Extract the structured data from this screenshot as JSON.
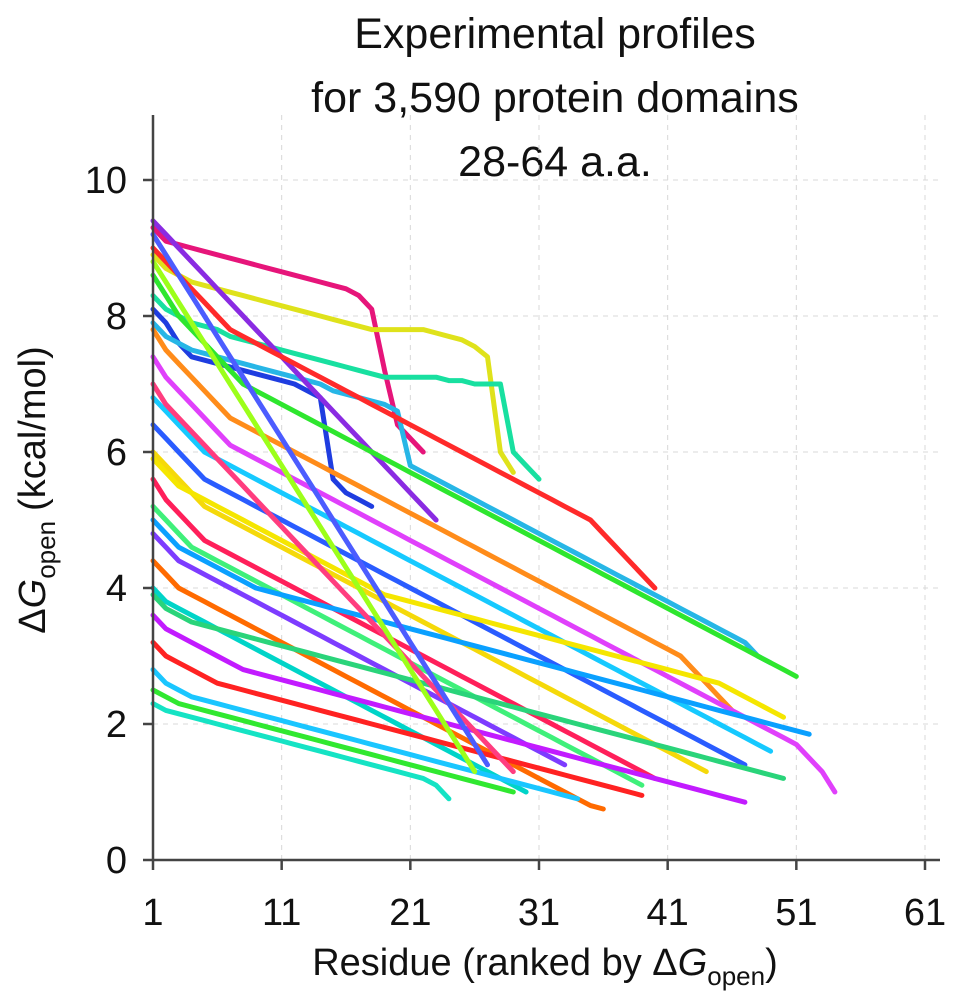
{
  "chart_data": {
    "type": "line",
    "title": [
      "Experimental profiles",
      "for 3,590 protein domains",
      "28-64 a.a."
    ],
    "xlabel": {
      "main": "Residue (ranked by Δ",
      "var": "G",
      "sub": "open",
      "close": ")"
    },
    "ylabel": {
      "main": "Δ",
      "var": "G",
      "sub": "open",
      "units": "(kcal/mol)"
    },
    "xlim": [
      1,
      62
    ],
    "ylim": [
      0,
      11
    ],
    "x_ticks": [
      1,
      11,
      21,
      31,
      41,
      51,
      61
    ],
    "y_ticks": [
      0,
      2,
      4,
      6,
      8,
      10
    ],
    "grid": true,
    "series_note": "3,590 profiles; representative subset drawn, each starting at residue 1 and decreasing",
    "series": [
      {
        "color": "#e6157a",
        "y": [
          9.3,
          9.1,
          9.05,
          9.0,
          8.95,
          8.9,
          8.85,
          8.8,
          8.75,
          8.7,
          8.65,
          8.6,
          8.55,
          8.5,
          8.45,
          8.4,
          8.3,
          8.1,
          7.2,
          6.4,
          6.2,
          6.0
        ]
      },
      {
        "color": "#dfe21b",
        "y": [
          8.9,
          8.7,
          8.6,
          8.5,
          8.45,
          8.4,
          8.35,
          8.3,
          8.25,
          8.2,
          8.15,
          8.1,
          8.05,
          8.0,
          7.95,
          7.9,
          7.85,
          7.8,
          7.8,
          7.8,
          7.8,
          7.8,
          7.75,
          7.7,
          7.65,
          7.55,
          7.4,
          6.0,
          5.7
        ]
      },
      {
        "color": "#18e0a0",
        "y": [
          8.3,
          8.1,
          8.0,
          7.9,
          7.85,
          7.8,
          7.7,
          7.65,
          7.6,
          7.55,
          7.5,
          7.45,
          7.4,
          7.35,
          7.3,
          7.25,
          7.2,
          7.15,
          7.1,
          7.1,
          7.1,
          7.1,
          7.1,
          7.05,
          7.05,
          7.0,
          7.0,
          7.0,
          6.0,
          5.8,
          5.6
        ]
      },
      {
        "color": "#1f3de0",
        "y": [
          8.1,
          7.9,
          7.6,
          7.4,
          7.35,
          7.3,
          7.25,
          7.2,
          7.15,
          7.1,
          7.05,
          7.0,
          6.9,
          6.8,
          5.6,
          5.4,
          5.3,
          5.2
        ]
      },
      {
        "color": "#27b6e6",
        "y": [
          7.9,
          7.7,
          7.6,
          7.5,
          7.45,
          7.4,
          7.35,
          7.3,
          7.25,
          7.2,
          7.15,
          7.1,
          7.05,
          7.0,
          6.9,
          6.85,
          6.8,
          6.75,
          6.7,
          6.6,
          5.8,
          5.7,
          5.6,
          5.5,
          5.4,
          5.3,
          5.2,
          5.1,
          5.0,
          4.9,
          4.8,
          4.7,
          4.6,
          4.5,
          4.4,
          4.3,
          4.2,
          4.1,
          4.0,
          3.9,
          3.8,
          3.7,
          3.6,
          3.5,
          3.4,
          3.3,
          3.2,
          3.0,
          2.9
        ]
      },
      {
        "color": "#8a2be2",
        "y": [
          9.4,
          9.2,
          9.0,
          8.8,
          8.6,
          8.4,
          8.2,
          8.0,
          7.8,
          7.6,
          7.4,
          7.2,
          7.0,
          6.8,
          6.6,
          6.4,
          6.2,
          6.0,
          5.8,
          5.6,
          5.4,
          5.2,
          5.0
        ]
      },
      {
        "color": "#ff2a2a",
        "y": [
          9.0,
          8.8,
          8.6,
          8.4,
          8.2,
          8.0,
          7.8,
          7.7,
          7.6,
          7.5,
          7.4,
          7.3,
          7.2,
          7.1,
          7.0,
          6.9,
          6.8,
          6.7,
          6.6,
          6.5,
          6.4,
          6.3,
          6.2,
          6.1,
          6.0,
          5.9,
          5.8,
          5.7,
          5.6,
          5.5,
          5.4,
          5.3,
          5.2,
          5.1,
          5.0,
          4.8,
          4.6,
          4.4,
          4.2,
          4.0
        ]
      },
      {
        "color": "#2ee62e",
        "y": [
          8.6,
          8.3,
          8.0,
          7.8,
          7.6,
          7.4,
          7.2,
          7.0,
          6.9,
          6.8,
          6.7,
          6.6,
          6.5,
          6.4,
          6.3,
          6.2,
          6.1,
          6.0,
          5.9,
          5.8,
          5.7,
          5.6,
          5.5,
          5.4,
          5.3,
          5.2,
          5.1,
          5.0,
          4.9,
          4.8,
          4.7,
          4.6,
          4.5,
          4.4,
          4.3,
          4.2,
          4.1,
          4.0,
          3.9,
          3.8,
          3.7,
          3.6,
          3.5,
          3.4,
          3.3,
          3.2,
          3.1,
          3.0,
          2.9,
          2.8,
          2.7
        ]
      },
      {
        "color": "#ff8c1a",
        "y": [
          7.8,
          7.5,
          7.3,
          7.1,
          6.9,
          6.7,
          6.5,
          6.4,
          6.3,
          6.2,
          6.1,
          6.0,
          5.9,
          5.8,
          5.7,
          5.6,
          5.5,
          5.4,
          5.3,
          5.2,
          5.1,
          5.0,
          4.9,
          4.8,
          4.7,
          4.6,
          4.5,
          4.4,
          4.3,
          4.2,
          4.1,
          4.0,
          3.9,
          3.8,
          3.7,
          3.6,
          3.5,
          3.4,
          3.3,
          3.2,
          3.1,
          3.0,
          2.8,
          2.6,
          2.4,
          2.2
        ]
      },
      {
        "color": "#e040fb",
        "y": [
          7.4,
          7.1,
          6.9,
          6.7,
          6.5,
          6.3,
          6.1,
          6.0,
          5.9,
          5.8,
          5.7,
          5.6,
          5.5,
          5.4,
          5.3,
          5.2,
          5.1,
          5.0,
          4.9,
          4.8,
          4.7,
          4.6,
          4.5,
          4.4,
          4.3,
          4.2,
          4.1,
          4.0,
          3.9,
          3.8,
          3.7,
          3.6,
          3.5,
          3.4,
          3.3,
          3.2,
          3.1,
          3.0,
          2.9,
          2.8,
          2.7,
          2.6,
          2.5,
          2.4,
          2.3,
          2.2,
          2.1,
          2.0,
          1.9,
          1.8,
          1.7,
          1.5,
          1.3,
          1.0
        ]
      },
      {
        "color": "#16c9ff",
        "y": [
          6.8,
          6.6,
          6.4,
          6.2,
          6.0,
          5.9,
          5.8,
          5.7,
          5.6,
          5.5,
          5.4,
          5.3,
          5.2,
          5.1,
          5.0,
          4.9,
          4.8,
          4.7,
          4.6,
          4.5,
          4.4,
          4.3,
          4.2,
          4.1,
          4.0,
          3.9,
          3.8,
          3.7,
          3.6,
          3.5,
          3.4,
          3.3,
          3.2,
          3.1,
          3.0,
          2.9,
          2.8,
          2.7,
          2.6,
          2.5,
          2.4,
          2.3,
          2.2,
          2.1,
          2.0,
          1.9,
          1.8,
          1.7,
          1.6
        ]
      },
      {
        "color": "#2a5cff",
        "y": [
          6.4,
          6.2,
          6.0,
          5.8,
          5.6,
          5.5,
          5.4,
          5.3,
          5.2,
          5.1,
          5.0,
          4.9,
          4.8,
          4.7,
          4.6,
          4.5,
          4.4,
          4.3,
          4.2,
          4.1,
          4.0,
          3.9,
          3.8,
          3.7,
          3.6,
          3.5,
          3.4,
          3.3,
          3.2,
          3.1,
          3.0,
          2.9,
          2.8,
          2.7,
          2.6,
          2.5,
          2.4,
          2.3,
          2.2,
          2.1,
          2.0,
          1.9,
          1.8,
          1.7,
          1.6,
          1.5,
          1.4
        ]
      },
      {
        "color": "#f5d90a",
        "y": [
          6.0,
          5.8,
          5.6,
          5.4,
          5.2,
          5.1,
          5.0,
          4.9,
          4.8,
          4.7,
          4.6,
          4.5,
          4.4,
          4.3,
          4.2,
          4.1,
          4.0,
          3.9,
          3.8,
          3.7,
          3.6,
          3.5,
          3.4,
          3.3,
          3.2,
          3.1,
          3.0,
          2.9,
          2.8,
          2.7,
          2.6,
          2.5,
          2.4,
          2.3,
          2.2,
          2.1,
          2.0,
          1.9,
          1.8,
          1.7,
          1.6,
          1.5,
          1.4,
          1.3
        ]
      },
      {
        "color": "#ff1f5a",
        "y": [
          5.6,
          5.3,
          5.1,
          4.9,
          4.7,
          4.6,
          4.5,
          4.4,
          4.3,
          4.2,
          4.1,
          4.0,
          3.9,
          3.8,
          3.7,
          3.6,
          3.5,
          3.4,
          3.3,
          3.2,
          3.1,
          3.0,
          2.9,
          2.8,
          2.7,
          2.6,
          2.5,
          2.4,
          2.3,
          2.2,
          2.1,
          2.0,
          1.9,
          1.8,
          1.7,
          1.6,
          1.5,
          1.4,
          1.3,
          1.2
        ]
      },
      {
        "color": "#3ff07a",
        "y": [
          5.2,
          5.0,
          4.8,
          4.6,
          4.5,
          4.4,
          4.3,
          4.2,
          4.1,
          4.0,
          3.9,
          3.8,
          3.7,
          3.6,
          3.5,
          3.4,
          3.3,
          3.2,
          3.1,
          3.0,
          2.9,
          2.8,
          2.7,
          2.6,
          2.5,
          2.4,
          2.3,
          2.2,
          2.1,
          2.0,
          1.9,
          1.8,
          1.7,
          1.6,
          1.5,
          1.4,
          1.3,
          1.2,
          1.1
        ]
      },
      {
        "color": "#7d3cff",
        "y": [
          4.8,
          4.6,
          4.4,
          4.3,
          4.2,
          4.1,
          4.0,
          3.9,
          3.8,
          3.7,
          3.6,
          3.5,
          3.4,
          3.3,
          3.2,
          3.1,
          3.0,
          2.9,
          2.8,
          2.7,
          2.6,
          2.5,
          2.4,
          2.3,
          2.2,
          2.1,
          2.0,
          1.9,
          1.8,
          1.7,
          1.6,
          1.5,
          1.4
        ]
      },
      {
        "color": "#ff6a00",
        "y": [
          4.4,
          4.2,
          4.0,
          3.9,
          3.8,
          3.7,
          3.6,
          3.5,
          3.4,
          3.3,
          3.2,
          3.1,
          3.0,
          2.9,
          2.8,
          2.7,
          2.6,
          2.5,
          2.4,
          2.3,
          2.2,
          2.1,
          2.0,
          1.9,
          1.8,
          1.7,
          1.6,
          1.5,
          1.4,
          1.3,
          1.2,
          1.1,
          1.0,
          0.9,
          0.8,
          0.75
        ]
      },
      {
        "color": "#00d4c8",
        "y": [
          4.0,
          3.8,
          3.7,
          3.6,
          3.5,
          3.4,
          3.3,
          3.2,
          3.1,
          3.0,
          2.9,
          2.8,
          2.7,
          2.6,
          2.5,
          2.4,
          2.3,
          2.2,
          2.1,
          2.0,
          1.9,
          1.8,
          1.7,
          1.6,
          1.5,
          1.4,
          1.3,
          1.2,
          1.1,
          1.0
        ]
      },
      {
        "color": "#c21bff",
        "y": [
          3.6,
          3.4,
          3.3,
          3.2,
          3.1,
          3.0,
          2.9,
          2.8,
          2.75,
          2.7,
          2.65,
          2.6,
          2.55,
          2.5,
          2.45,
          2.4,
          2.35,
          2.3,
          2.25,
          2.2,
          2.15,
          2.1,
          2.05,
          2.0,
          1.95,
          1.9,
          1.85,
          1.8,
          1.75,
          1.7,
          1.65,
          1.6,
          1.55,
          1.5,
          1.45,
          1.4,
          1.35,
          1.3,
          1.25,
          1.2,
          1.15,
          1.1,
          1.05,
          1.0,
          0.95,
          0.9,
          0.85
        ]
      },
      {
        "color": "#ff2222",
        "y": [
          3.2,
          3.0,
          2.9,
          2.8,
          2.7,
          2.6,
          2.55,
          2.5,
          2.45,
          2.4,
          2.35,
          2.3,
          2.25,
          2.2,
          2.15,
          2.1,
          2.05,
          2.0,
          1.95,
          1.9,
          1.85,
          1.8,
          1.75,
          1.7,
          1.65,
          1.6,
          1.55,
          1.5,
          1.45,
          1.4,
          1.35,
          1.3,
          1.25,
          1.2,
          1.15,
          1.1,
          1.05,
          1.0,
          0.95
        ]
      },
      {
        "color": "#1ac6ff",
        "y": [
          2.8,
          2.6,
          2.5,
          2.4,
          2.35,
          2.3,
          2.25,
          2.2,
          2.15,
          2.1,
          2.05,
          2.0,
          1.95,
          1.9,
          1.85,
          1.8,
          1.75,
          1.7,
          1.65,
          1.6,
          1.55,
          1.5,
          1.45,
          1.4,
          1.35,
          1.3,
          1.25,
          1.2,
          1.15,
          1.1,
          1.05,
          1.0,
          0.95,
          0.9
        ]
      },
      {
        "color": "#30e830",
        "y": [
          2.5,
          2.4,
          2.3,
          2.25,
          2.2,
          2.15,
          2.1,
          2.05,
          2.0,
          1.95,
          1.9,
          1.85,
          1.8,
          1.75,
          1.7,
          1.65,
          1.6,
          1.55,
          1.5,
          1.45,
          1.4,
          1.35,
          1.3,
          1.25,
          1.2,
          1.15,
          1.1,
          1.05,
          1.0
        ]
      },
      {
        "color": "#15e3c4",
        "y": [
          2.3,
          2.2,
          2.15,
          2.1,
          2.05,
          2.0,
          1.95,
          1.9,
          1.85,
          1.8,
          1.75,
          1.7,
          1.65,
          1.6,
          1.55,
          1.5,
          1.45,
          1.4,
          1.35,
          1.3,
          1.25,
          1.2,
          1.1,
          0.9
        ]
      },
      {
        "color": "#f5e600",
        "y": [
          5.9,
          5.7,
          5.5,
          5.4,
          5.3,
          5.2,
          5.1,
          5.0,
          4.9,
          4.8,
          4.7,
          4.6,
          4.5,
          4.4,
          4.3,
          4.2,
          4.1,
          4.0,
          3.9,
          3.85,
          3.8,
          3.75,
          3.7,
          3.65,
          3.6,
          3.55,
          3.5,
          3.45,
          3.4,
          3.35,
          3.3,
          3.25,
          3.2,
          3.15,
          3.1,
          3.05,
          3.0,
          2.95,
          2.9,
          2.85,
          2.8,
          2.75,
          2.7,
          2.65,
          2.6,
          2.5,
          2.4,
          2.3,
          2.2,
          2.1
        ]
      },
      {
        "color": "#0aa0ff",
        "y": [
          5.0,
          4.8,
          4.6,
          4.5,
          4.4,
          4.3,
          4.2,
          4.1,
          4.0,
          3.95,
          3.9,
          3.85,
          3.8,
          3.75,
          3.7,
          3.65,
          3.6,
          3.55,
          3.5,
          3.45,
          3.4,
          3.35,
          3.3,
          3.25,
          3.2,
          3.15,
          3.1,
          3.05,
          3.0,
          2.95,
          2.9,
          2.85,
          2.8,
          2.75,
          2.7,
          2.65,
          2.6,
          2.55,
          2.5,
          2.45,
          2.4,
          2.35,
          2.3,
          2.25,
          2.2,
          2.15,
          2.1,
          2.05,
          2.0,
          1.95,
          1.9,
          1.85
        ]
      },
      {
        "color": "#2ad47a",
        "y": [
          3.9,
          3.7,
          3.6,
          3.5,
          3.45,
          3.4,
          3.35,
          3.3,
          3.25,
          3.2,
          3.15,
          3.1,
          3.05,
          3.0,
          2.95,
          2.9,
          2.85,
          2.8,
          2.75,
          2.7,
          2.65,
          2.6,
          2.55,
          2.5,
          2.45,
          2.4,
          2.35,
          2.3,
          2.25,
          2.2,
          2.15,
          2.1,
          2.05,
          2.0,
          1.95,
          1.9,
          1.85,
          1.8,
          1.75,
          1.7,
          1.65,
          1.6,
          1.55,
          1.5,
          1.45,
          1.4,
          1.35,
          1.3,
          1.25,
          1.2
        ]
      },
      {
        "color": "#ff3d7f",
        "y": [
          7.0,
          6.7,
          6.5,
          6.3,
          6.1,
          5.9,
          5.7,
          5.5,
          5.3,
          5.1,
          4.9,
          4.7,
          4.5,
          4.3,
          4.1,
          3.9,
          3.7,
          3.5,
          3.3,
          3.1,
          2.9,
          2.7,
          2.5,
          2.3,
          2.1,
          1.9,
          1.7,
          1.5,
          1.3
        ]
      },
      {
        "color": "#4c5cff",
        "y": [
          9.2,
          8.9,
          8.6,
          8.3,
          8.0,
          7.7,
          7.4,
          7.1,
          6.8,
          6.5,
          6.2,
          5.9,
          5.6,
          5.3,
          5.0,
          4.7,
          4.4,
          4.1,
          3.8,
          3.5,
          3.2,
          2.9,
          2.6,
          2.3,
          2.0,
          1.7,
          1.4
        ]
      },
      {
        "color": "#9cff1a",
        "y": [
          8.8,
          8.5,
          8.2,
          7.9,
          7.6,
          7.3,
          7.0,
          6.7,
          6.4,
          6.1,
          5.8,
          5.5,
          5.2,
          4.9,
          4.6,
          4.3,
          4.0,
          3.7,
          3.4,
          3.1,
          2.8,
          2.5,
          2.2,
          1.9,
          1.6,
          1.3
        ]
      }
    ]
  }
}
